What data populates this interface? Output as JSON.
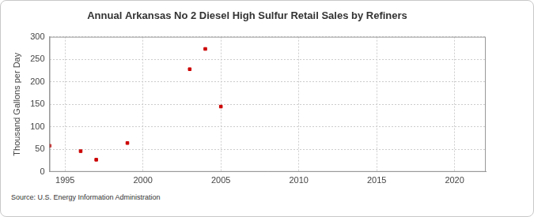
{
  "chart_data": {
    "type": "scatter",
    "title": "Annual Arkansas No 2 Diesel High Sulfur Retail Sales by Refiners",
    "y_label": "Thousand Gallons per Day",
    "source": "Source: U.S. Energy Information Administration",
    "x": [
      1994,
      1996,
      1997,
      1999,
      2003,
      2004,
      2005
    ],
    "values": [
      58,
      46,
      27,
      64,
      228,
      273,
      145
    ],
    "color": "#cc0000",
    "marker": "square",
    "xlim": [
      1994,
      2022
    ],
    "xticks": [
      1995,
      2000,
      2005,
      2010,
      2015,
      2020
    ],
    "ylim": [
      0,
      300
    ],
    "yticks": [
      0,
      50,
      100,
      150,
      200,
      250,
      300
    ],
    "grid": true
  }
}
